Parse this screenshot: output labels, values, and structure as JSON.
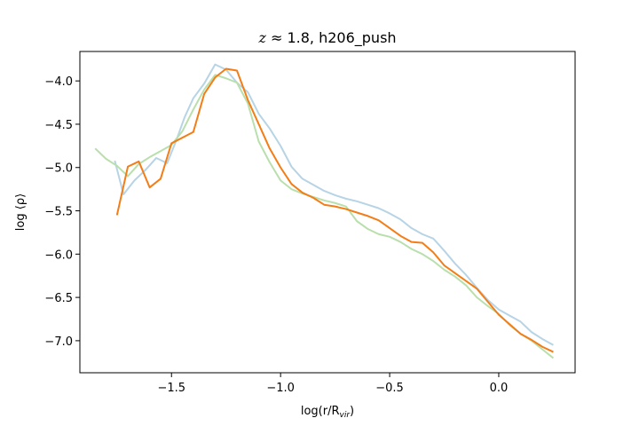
{
  "chart_data": {
    "type": "line",
    "title": "z ≈ 1.8, h206_push",
    "title_italic_part": "z",
    "title_rest": " ≈ 1.8, h206_push",
    "xlabel": "log(r/R",
    "xlabel_sub": "vir",
    "xlabel_end": ")",
    "ylabel": "log ⟨ρ⟩",
    "xlim": [
      -1.92,
      0.35
    ],
    "ylim": [
      -7.37,
      -3.66
    ],
    "xticks": [
      -1.5,
      -1.0,
      -0.5,
      0.0
    ],
    "xtick_labels": [
      "−1.5",
      "−1.0",
      "−0.5",
      "0.0"
    ],
    "yticks": [
      -4.0,
      -4.5,
      -5.0,
      -5.5,
      -6.0,
      -6.5,
      -7.0
    ],
    "ytick_labels": [
      "−4.0",
      "−4.5",
      "−5.0",
      "−5.5",
      "−6.0",
      "−6.5",
      "−7.0"
    ],
    "grid": false,
    "series": [
      {
        "color": "#b7d4e6",
        "x": [
          -1.76,
          -1.72,
          -1.67,
          -1.62,
          -1.57,
          -1.52,
          -1.48,
          -1.44,
          -1.4,
          -1.35,
          -1.3,
          -1.25,
          -1.2,
          -1.15,
          -1.1,
          -1.05,
          -1.0,
          -0.95,
          -0.9,
          -0.85,
          -0.8,
          -0.75,
          -0.7,
          -0.65,
          -0.6,
          -0.55,
          -0.5,
          -0.45,
          -0.4,
          -0.35,
          -0.3,
          -0.25,
          -0.2,
          -0.15,
          -0.1,
          -0.05,
          0.0,
          0.05,
          0.1,
          0.15,
          0.2,
          0.25
        ],
        "y": [
          -4.92,
          -5.31,
          -5.15,
          -5.03,
          -4.89,
          -4.95,
          -4.7,
          -4.42,
          -4.2,
          -4.03,
          -3.81,
          -3.87,
          -4.02,
          -4.13,
          -4.38,
          -4.55,
          -4.75,
          -4.99,
          -5.13,
          -5.2,
          -5.27,
          -5.32,
          -5.36,
          -5.39,
          -5.43,
          -5.47,
          -5.53,
          -5.6,
          -5.7,
          -5.77,
          -5.82,
          -5.96,
          -6.11,
          -6.24,
          -6.39,
          -6.53,
          -6.64,
          -6.71,
          -6.78,
          -6.9,
          -6.98,
          -7.05
        ]
      },
      {
        "color": "#b9dfac",
        "x": [
          -1.85,
          -1.8,
          -1.75,
          -1.7,
          -1.65,
          -1.6,
          -1.55,
          -1.5,
          -1.45,
          -1.4,
          -1.35,
          -1.3,
          -1.25,
          -1.2,
          -1.15,
          -1.1,
          -1.05,
          -1.0,
          -0.95,
          -0.9,
          -0.85,
          -0.8,
          -0.75,
          -0.7,
          -0.65,
          -0.6,
          -0.55,
          -0.5,
          -0.45,
          -0.4,
          -0.35,
          -0.3,
          -0.25,
          -0.2,
          -0.15,
          -0.1,
          -0.05,
          0.0,
          0.05,
          0.1,
          0.15,
          0.2,
          0.25
        ],
        "y": [
          -4.78,
          -4.9,
          -4.98,
          -5.1,
          -4.96,
          -4.88,
          -4.81,
          -4.74,
          -4.58,
          -4.33,
          -4.1,
          -3.93,
          -3.97,
          -4.02,
          -4.26,
          -4.7,
          -4.94,
          -5.15,
          -5.25,
          -5.3,
          -5.34,
          -5.38,
          -5.41,
          -5.45,
          -5.62,
          -5.71,
          -5.77,
          -5.8,
          -5.86,
          -5.94,
          -6.0,
          -6.08,
          -6.18,
          -6.26,
          -6.36,
          -6.5,
          -6.6,
          -6.69,
          -6.82,
          -6.92,
          -7.0,
          -7.1,
          -7.2
        ]
      },
      {
        "color": "#f37d16",
        "x": [
          -1.75,
          -1.7,
          -1.65,
          -1.6,
          -1.55,
          -1.5,
          -1.4,
          -1.35,
          -1.3,
          -1.25,
          -1.2,
          -1.15,
          -1.1,
          -1.05,
          -1.0,
          -0.95,
          -0.9,
          -0.85,
          -0.8,
          -0.75,
          -0.7,
          -0.65,
          -0.6,
          -0.55,
          -0.5,
          -0.45,
          -0.4,
          -0.35,
          -0.3,
          -0.25,
          -0.2,
          -0.15,
          -0.1,
          -0.05,
          0.0,
          0.05,
          0.1,
          0.15,
          0.2,
          0.25
        ],
        "y": [
          -5.55,
          -4.99,
          -4.93,
          -5.23,
          -5.13,
          -4.72,
          -4.59,
          -4.15,
          -3.96,
          -3.86,
          -3.88,
          -4.22,
          -4.5,
          -4.78,
          -5.0,
          -5.19,
          -5.29,
          -5.35,
          -5.43,
          -5.45,
          -5.48,
          -5.52,
          -5.56,
          -5.61,
          -5.7,
          -5.79,
          -5.86,
          -5.87,
          -5.98,
          -6.13,
          -6.22,
          -6.31,
          -6.4,
          -6.55,
          -6.7,
          -6.81,
          -6.92,
          -6.99,
          -7.07,
          -7.13
        ]
      }
    ]
  }
}
